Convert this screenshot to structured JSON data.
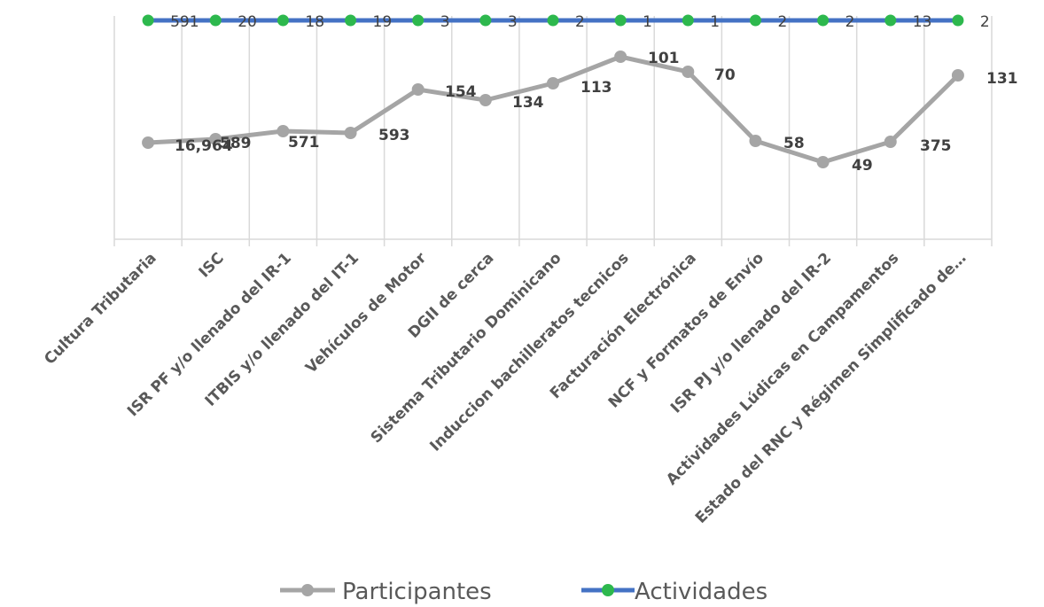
{
  "chart_data": {
    "type": "line",
    "categories": [
      "Cultura Tributaria",
      "ISC",
      "ISR PF y/o llenado del IR-1",
      "ITBIS y/o llenado del IT-1",
      "Vehículos de Motor",
      "DGII de cerca",
      "Sistema Tributario Dominicano",
      "Induccion bachilleratos tecnicos",
      "Facturación Electrónica",
      "NCF y Formatos de Envío",
      "ISR PJ y/o llenado del IR-2",
      "Actividades Lúdicas en Campamentos",
      "Estado del RNC y Régimen Simplificado de…"
    ],
    "series": [
      {
        "name": "Participantes",
        "color": "#a5a5a5",
        "labels": [
          "16,964",
          "589",
          "571",
          "593",
          "154",
          "134",
          "113",
          "101",
          "70",
          "58",
          "49",
          "375",
          "131"
        ],
        "values": [
          16964,
          589,
          571,
          593,
          154,
          134,
          113,
          101,
          70,
          58,
          49,
          375,
          131
        ]
      },
      {
        "name": "Actividades",
        "color": "#4472c4",
        "marker_color": "#2db84d",
        "labels": [
          "591",
          "20",
          "18",
          "19",
          "3",
          "3",
          "2",
          "1",
          "1",
          "2",
          "2",
          "13",
          "2"
        ],
        "values": [
          591,
          20,
          18,
          19,
          3,
          3,
          2,
          1,
          1,
          2,
          2,
          13,
          2
        ]
      }
    ],
    "grid": "vertical",
    "legend": "bottom"
  }
}
